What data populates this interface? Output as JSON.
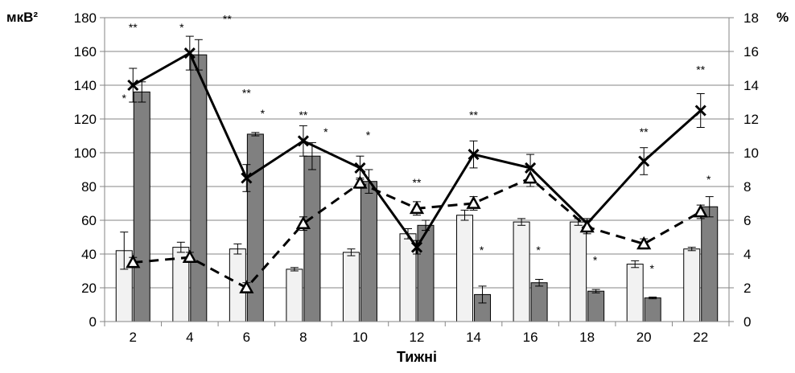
{
  "chart_data": {
    "type": "bar",
    "xlabel": "Тижні",
    "ylabel_left": "мкВ²",
    "ylabel_right": "%",
    "left_ylim": [
      0,
      180
    ],
    "right_ylim": [
      0,
      18
    ],
    "left_ticks": [
      "0",
      "20",
      "40",
      "60",
      "80",
      "100",
      "120",
      "140",
      "160",
      "180"
    ],
    "right_ticks": [
      "0",
      "2",
      "4",
      "6",
      "8",
      "10",
      "12",
      "14",
      "16",
      "18"
    ],
    "categories": [
      "2",
      "4",
      "6",
      "8",
      "10",
      "12",
      "14",
      "16",
      "18",
      "20",
      "22"
    ],
    "grid": true,
    "bar_series": [
      {
        "color": "#f2f2f2",
        "values": [
          42,
          44,
          43,
          31,
          41,
          52,
          63,
          59,
          59,
          34,
          43
        ],
        "errors": [
          11,
          3,
          3,
          1,
          2,
          3,
          3,
          2,
          2,
          2,
          1
        ]
      },
      {
        "color": "#808080",
        "values": [
          136,
          158,
          111,
          98,
          83,
          57,
          16,
          23,
          18,
          14,
          68
        ],
        "errors": [
          6,
          9,
          1,
          8,
          7,
          3,
          5,
          2,
          1,
          0.5,
          6
        ]
      }
    ],
    "line_series": [
      {
        "style": "solid",
        "marker": "x",
        "values": [
          14.0,
          15.9,
          8.5,
          10.7,
          9.1,
          4.4,
          9.9,
          9.1,
          5.8,
          9.5,
          12.5
        ],
        "errors": [
          1.0,
          1.0,
          0.8,
          0.9,
          0.7,
          0.4,
          0.8,
          0.8,
          0.3,
          0.8,
          1.0
        ]
      },
      {
        "style": "dashed",
        "marker": "triangle",
        "values": [
          3.5,
          3.8,
          2.0,
          5.8,
          8.2,
          6.7,
          7.0,
          8.5,
          5.6,
          4.6,
          6.5
        ],
        "errors": [
          0.3,
          0.3,
          0.3,
          0.4,
          0.3,
          0.4,
          0.4,
          0.5,
          0.4,
          0.3,
          0.4
        ]
      }
    ],
    "annotations": [
      {
        "text": "**",
        "cat": 0,
        "val": 172
      },
      {
        "text": "*",
        "cat": 0,
        "val": 130,
        "dx": -11
      },
      {
        "text": "*",
        "cat": 1,
        "val": 172,
        "dx": -10
      },
      {
        "text": "**",
        "cat": 2,
        "val": 177,
        "dx": -24
      },
      {
        "text": "**",
        "cat": 2,
        "val": 133
      },
      {
        "text": "*",
        "cat": 2,
        "val": 121,
        "dx": 20
      },
      {
        "text": "**",
        "cat": 3,
        "val": 120
      },
      {
        "text": "*",
        "cat": 3,
        "val": 110,
        "dx": 28
      },
      {
        "text": "*",
        "cat": 4,
        "val": 108,
        "dx": 10
      },
      {
        "text": "**",
        "cat": 5,
        "val": 80
      },
      {
        "text": "**",
        "cat": 6,
        "val": 120
      },
      {
        "text": "*",
        "cat": 6,
        "val": 40,
        "dx": 10
      },
      {
        "text": "*",
        "cat": 7,
        "val": 40,
        "dx": 10
      },
      {
        "text": "*",
        "cat": 8,
        "val": 34,
        "dx": 10
      },
      {
        "text": "**",
        "cat": 9,
        "val": 110
      },
      {
        "text": "*",
        "cat": 9,
        "val": 29,
        "dx": 10
      },
      {
        "text": "**",
        "cat": 10,
        "val": 147
      },
      {
        "text": "*",
        "cat": 10,
        "val": 82,
        "dx": 10
      }
    ]
  }
}
